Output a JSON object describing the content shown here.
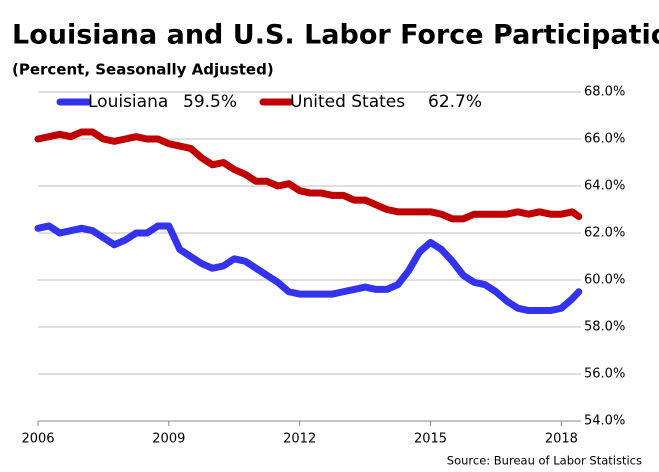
{
  "chart_data": {
    "type": "line",
    "title": "Louisiana and U.S. Labor Force Participation",
    "subtitle": "(Percent, Seasonally Adjusted)",
    "source": "Source: Bureau of Labor Statistics",
    "x": [
      2006.0,
      2006.25,
      2006.5,
      2006.75,
      2007.0,
      2007.25,
      2007.5,
      2007.75,
      2008.0,
      2008.25,
      2008.5,
      2008.75,
      2009.0,
      2009.25,
      2009.5,
      2009.75,
      2010.0,
      2010.25,
      2010.5,
      2010.75,
      2011.0,
      2011.25,
      2011.5,
      2011.75,
      2012.0,
      2012.25,
      2012.5,
      2012.75,
      2013.0,
      2013.25,
      2013.5,
      2013.75,
      2014.0,
      2014.25,
      2014.5,
      2014.75,
      2015.0,
      2015.25,
      2015.5,
      2015.75,
      2016.0,
      2016.25,
      2016.5,
      2016.75,
      2017.0,
      2017.25,
      2017.5,
      2017.75,
      2018.0,
      2018.25,
      2018.4
    ],
    "series": [
      {
        "name": "Louisiana",
        "latest_label": "59.5%",
        "color": "#3333ee",
        "values": [
          62.2,
          62.3,
          62.0,
          62.1,
          62.2,
          62.1,
          61.8,
          61.5,
          61.7,
          62.0,
          62.0,
          62.3,
          62.3,
          61.3,
          61.0,
          60.7,
          60.5,
          60.6,
          60.9,
          60.8,
          60.5,
          60.2,
          59.9,
          59.5,
          59.4,
          59.4,
          59.4,
          59.4,
          59.5,
          59.6,
          59.7,
          59.6,
          59.6,
          59.8,
          60.4,
          61.2,
          61.6,
          61.3,
          60.8,
          60.2,
          59.9,
          59.8,
          59.5,
          59.1,
          58.8,
          58.7,
          58.7,
          58.7,
          58.8,
          59.2,
          59.5
        ]
      },
      {
        "name": "United States",
        "latest_label": "62.7%",
        "color": "#c00000",
        "values": [
          66.0,
          66.1,
          66.2,
          66.1,
          66.3,
          66.3,
          66.0,
          65.9,
          66.0,
          66.1,
          66.0,
          66.0,
          65.8,
          65.7,
          65.6,
          65.2,
          64.9,
          65.0,
          64.7,
          64.5,
          64.2,
          64.2,
          64.0,
          64.1,
          63.8,
          63.7,
          63.7,
          63.6,
          63.6,
          63.4,
          63.4,
          63.2,
          63.0,
          62.9,
          62.9,
          62.9,
          62.9,
          62.8,
          62.6,
          62.6,
          62.8,
          62.8,
          62.8,
          62.8,
          62.9,
          62.8,
          62.9,
          62.8,
          62.8,
          62.9,
          62.7
        ]
      }
    ],
    "xlim": [
      2006,
      2018.45
    ],
    "xticks": [
      2006,
      2009,
      2012,
      2015,
      2018
    ],
    "ylim": [
      54,
      68
    ],
    "yticks": [
      {
        "value": 54,
        "label": "54.0%"
      },
      {
        "value": 56,
        "label": "56.0%"
      },
      {
        "value": 58,
        "label": "58.0%"
      },
      {
        "value": 60,
        "label": "60.0%"
      },
      {
        "value": 62,
        "label": "62.0%"
      },
      {
        "value": 64,
        "label": "64.0%"
      },
      {
        "value": 66,
        "label": "66.0%"
      },
      {
        "value": 68,
        "label": "68.0%"
      }
    ],
    "grid": true
  }
}
